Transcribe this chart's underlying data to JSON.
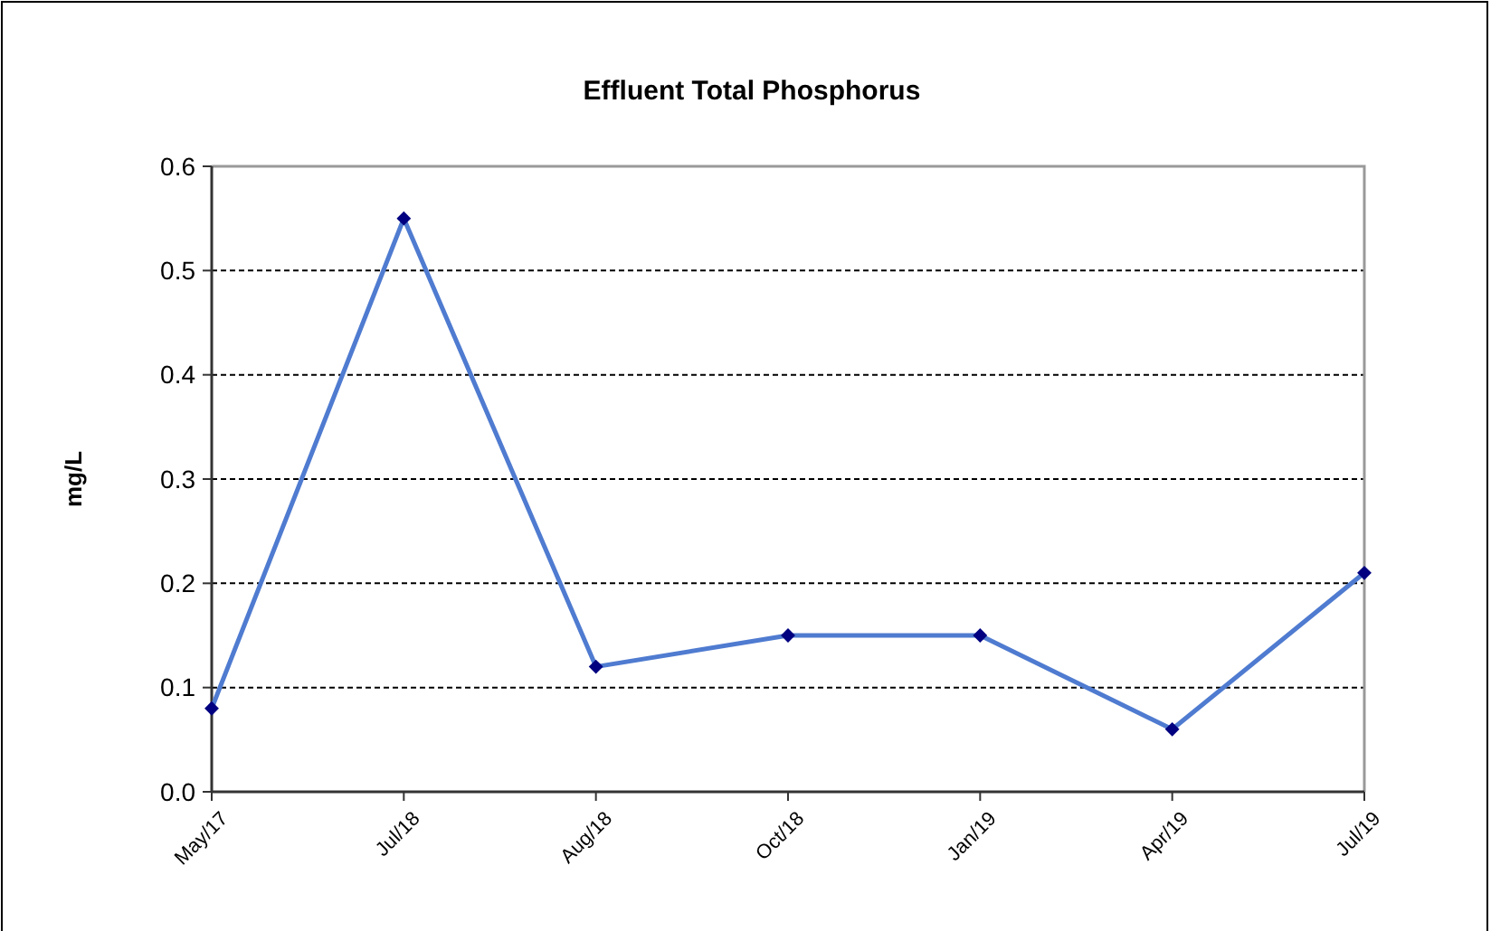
{
  "chart_data": {
    "type": "line",
    "title": "Effluent Total Phosphorus",
    "ylabel": "mg/L",
    "categories": [
      "May/17",
      "Jul/18",
      "Aug/18",
      "Oct/18",
      "Jan/19",
      "Apr/19",
      "Jul/19"
    ],
    "series": [
      {
        "color": "#4f7bd0",
        "values": [
          0.08,
          0.55,
          0.12,
          0.15,
          0.15,
          0.06,
          0.21
        ]
      }
    ],
    "ylim": [
      0,
      0.6
    ],
    "yticks": [
      {
        "value": 0,
        "label": "0.0"
      },
      0.1,
      0.2,
      0.3,
      0.4,
      0.5,
      0.6
    ],
    "grid": "y",
    "marker": "diamond",
    "line_style": "solid"
  }
}
